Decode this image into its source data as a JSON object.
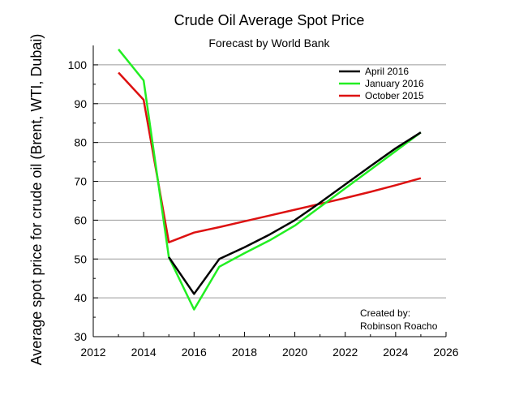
{
  "chart_data": {
    "type": "line",
    "title": "Crude Oil Average Spot Price",
    "subtitle": "Forecast by World Bank",
    "xlabel": "",
    "ylabel": "Average spot price for crude oil (Brent, WTI, Dubai)",
    "xlim": [
      2012,
      2026
    ],
    "ylim": [
      30,
      105
    ],
    "x_ticks": [
      2012,
      2014,
      2016,
      2018,
      2020,
      2022,
      2024,
      2026
    ],
    "y_ticks": [
      30,
      40,
      50,
      60,
      70,
      80,
      90,
      100
    ],
    "grid": "horizontal",
    "legend_position": "top-right",
    "series": [
      {
        "name": "April 2016",
        "color": "#000000",
        "x": [
          2015,
          2016,
          2017,
          2018,
          2019,
          2020,
          2021,
          2022,
          2023,
          2024,
          2025
        ],
        "y": [
          50.5,
          41,
          50,
          53,
          56.3,
          60,
          64.5,
          69.2,
          73.9,
          78.5,
          82.6
        ]
      },
      {
        "name": "January 2016",
        "color": "#22ee22",
        "x": [
          2013,
          2014,
          2015,
          2016,
          2017,
          2018,
          2019,
          2020,
          2021,
          2022,
          2023,
          2024,
          2025
        ],
        "y": [
          104,
          96,
          50.5,
          37,
          48,
          51.5,
          54.8,
          58.6,
          63.4,
          68.2,
          73,
          77.8,
          82.6
        ]
      },
      {
        "name": "October 2015",
        "color": "#dd1111",
        "x": [
          2013,
          2014,
          2015,
          2016,
          2017,
          2018,
          2019,
          2020,
          2021,
          2022,
          2023,
          2024,
          2025
        ],
        "y": [
          98,
          91,
          54.3,
          56.8,
          58.2,
          59.7,
          61.2,
          62.7,
          64.2,
          65.7,
          67.3,
          69,
          70.8
        ]
      }
    ],
    "annotation": [
      "Created by:",
      "Robinson Roacho"
    ]
  }
}
